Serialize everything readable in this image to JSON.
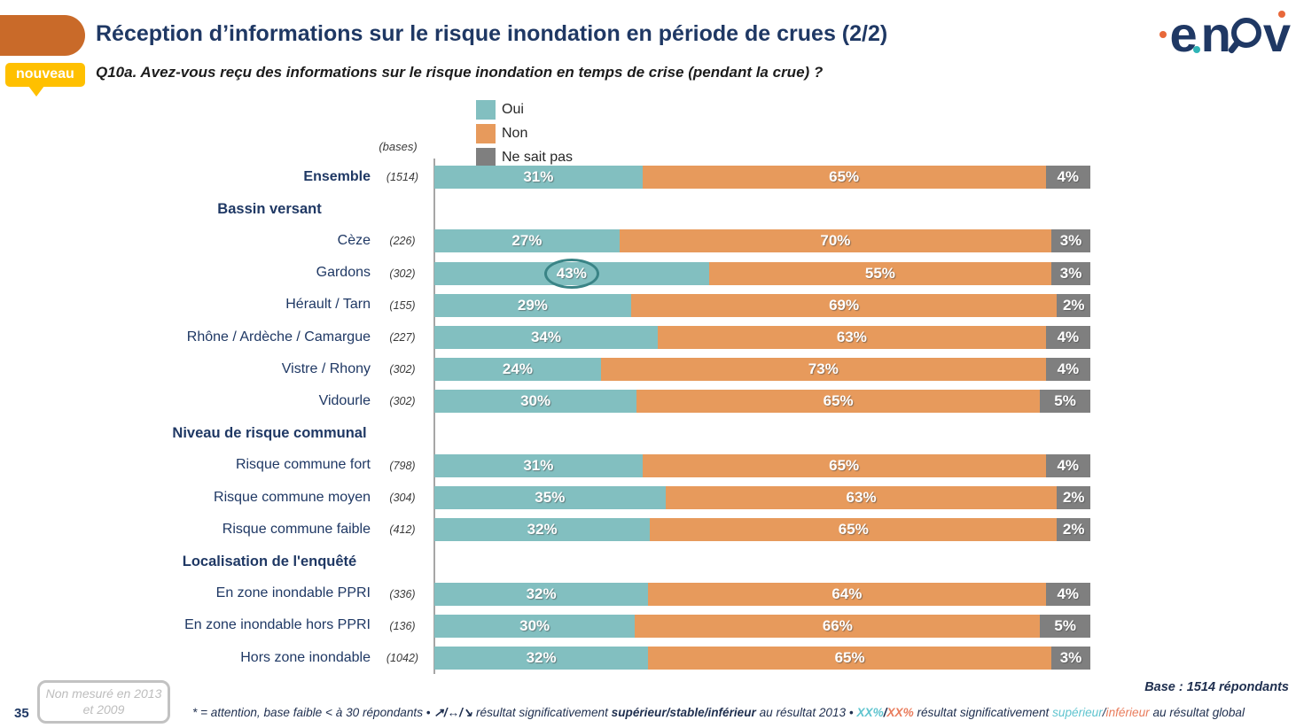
{
  "page": {
    "number": "35"
  },
  "header": {
    "badge": "nouveau",
    "title": "Réception d’informations sur le risque inondation en période de crues (2/2)",
    "question": "Q10a. Avez-vous reçu des informations sur le risque inondation en temps de crise (pendant la crue) ?"
  },
  "logo": {
    "name": "enov",
    "letter_e": "e",
    "letter_n": "n",
    "letter_v": "v"
  },
  "legend": [
    {
      "label": "Oui",
      "color": "#82BFC0"
    },
    {
      "label": "Non",
      "color": "#E79A5C"
    },
    {
      "label": "Ne sait pas",
      "color": "#7F7F7F"
    }
  ],
  "bases_label": "(bases)",
  "chart_data": {
    "type": "bar",
    "orientation": "horizontal",
    "stacked": true,
    "unit": "%",
    "xlim": [
      0,
      100
    ],
    "grid": false,
    "legend_position": "top",
    "series_names": [
      "Oui",
      "Non",
      "Ne sait pas"
    ],
    "series_colors": [
      "#82BFC0",
      "#E79A5C",
      "#7F7F7F"
    ],
    "annotation": {
      "row": "Gardons",
      "series": "Oui",
      "value": 43,
      "style": "circled"
    },
    "rows": [
      {
        "type": "data",
        "label": "Ensemble",
        "base": "(1514)",
        "bold": true,
        "values": [
          31,
          65,
          4
        ]
      },
      {
        "type": "header",
        "label": "Bassin versant"
      },
      {
        "type": "data",
        "label": "Cèze",
        "base": "(226)",
        "values": [
          27,
          70,
          3
        ]
      },
      {
        "type": "data",
        "label": "Gardons",
        "base": "(302)",
        "values": [
          43,
          55,
          3
        ],
        "circled": 0
      },
      {
        "type": "data",
        "label": "Hérault / Tarn",
        "base": "(155)",
        "values": [
          29,
          69,
          2
        ]
      },
      {
        "type": "data",
        "label": "Rhône / Ardèche / Camargue",
        "base": "(227)",
        "values": [
          34,
          63,
          4
        ]
      },
      {
        "type": "data",
        "label": "Vistre / Rhony",
        "base": "(302)",
        "values": [
          24,
          73,
          4
        ]
      },
      {
        "type": "data",
        "label": "Vidourle",
        "base": "(302)",
        "values": [
          30,
          65,
          5
        ]
      },
      {
        "type": "header",
        "label": "Niveau de risque communal"
      },
      {
        "type": "data",
        "label": "Risque commune fort",
        "base": "(798)",
        "values": [
          31,
          65,
          4
        ]
      },
      {
        "type": "data",
        "label": "Risque commune moyen",
        "base": "(304)",
        "values": [
          35,
          63,
          2
        ]
      },
      {
        "type": "data",
        "label": "Risque commune faible",
        "base": "(412)",
        "values": [
          32,
          65,
          2
        ]
      },
      {
        "type": "header",
        "label": "Localisation de l'enquêté"
      },
      {
        "type": "data",
        "label": "En zone inondable PPRI",
        "base": "(336)",
        "values": [
          32,
          64,
          4
        ]
      },
      {
        "type": "data",
        "label": "En zone inondable hors PPRI",
        "base": "(136)",
        "values": [
          30,
          66,
          5
        ]
      },
      {
        "type": "data",
        "label": "Hors zone inondable",
        "base": "(1042)",
        "values": [
          32,
          65,
          3
        ]
      }
    ]
  },
  "footnotes": {
    "not_measured": "Non mesuré en 2013 et 2009",
    "base_total": "Base : 1514 répondants",
    "note": {
      "p1": "* = attention, base faible < à 30 répondants • ",
      "arrows": "↗/↔/↘",
      "p2": " résultat significativement ",
      "b1": "supérieur/stable/inférieur",
      "p3": " au résultat 2013 • ",
      "xx_sup": "XX%",
      "s1": "/",
      "xx_inf": "XX%",
      "p4": " résultat significativement ",
      "sup": "supérieur",
      "s2": "/",
      "inf": "inférieur",
      "p5": " au résultat global"
    }
  },
  "colors": {
    "navy": "#1F3864",
    "tab_orange": "#C96A29",
    "badge_yellow": "#FFC000",
    "axis_gray": "#A6A6A6",
    "ellipse_teal": "#3A8486",
    "footer_teal": "#5FC4CF",
    "footer_salmon": "#E97C5C"
  }
}
